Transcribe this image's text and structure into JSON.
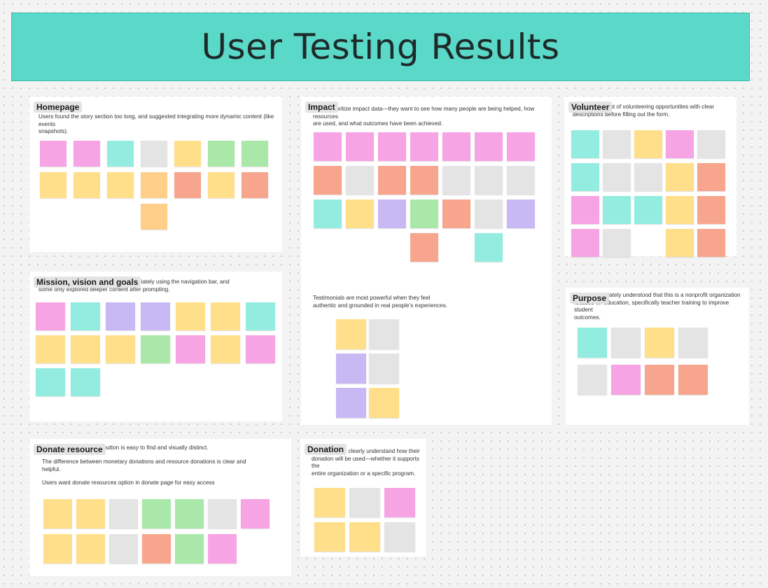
{
  "banner": {
    "title": "User Testing Results",
    "color": "#5ad8c8"
  },
  "frames": {
    "homepage": {
      "title": "Homepage",
      "lines": [
        "Users found the story section too long, and suggested integrating more dynamic content (like events",
        "snapshots)."
      ]
    },
    "impact": {
      "title": "Impact",
      "lines": [
        "Users prioritize impact data—they want to see how many people are being helped, how resources",
        "are used, and what outcomes have been achieved."
      ],
      "testimonial_lines": [
        "Testimonials are most powerful when they feel",
        "authentic and grounded in real people’s experiences."
      ]
    },
    "volunteer": {
      "title": "Volunteer",
      "lines": [
        "Users want a list of volunteering opportunities with clear",
        "descriptions before filling out the form."
      ]
    },
    "mission": {
      "title": "Mission, vision and goals",
      "lines": [
        "Users read the section instead of immediately using the navigation bar, and",
        "some only explored deeper content after prompting."
      ]
    },
    "purpose": {
      "title": "Purpose",
      "lines": [
        "Users immediately understood that this is a nonprofit organization",
        "focused on education, specifically teacher training to improve student",
        "outcomes."
      ]
    },
    "donate": {
      "title": "Donate resource",
      "lines": [
        "Users found the donate button is easy to find and visually distinct."
      ],
      "line2": [
        "The difference between monetary donations and resource donations is clear and",
        "helpful."
      ],
      "line3": [
        "Users want donate resources option in donate page for easy access"
      ]
    },
    "donation": {
      "title": "Donation",
      "lines": [
        "Users want to clearly understand how their",
        "donation will be used—whether it supports the",
        "entire organization or a specific program."
      ]
    }
  },
  "colors": {
    "pink": "#f6a4e3",
    "yellow": "#ffdf8a",
    "mint": "#92ede0",
    "green": "#a9e8a8",
    "purple": "#c8b8f4",
    "gray": "#e4e4e4",
    "salmon": "#f8a58e",
    "orange": "#ffcf8a"
  }
}
